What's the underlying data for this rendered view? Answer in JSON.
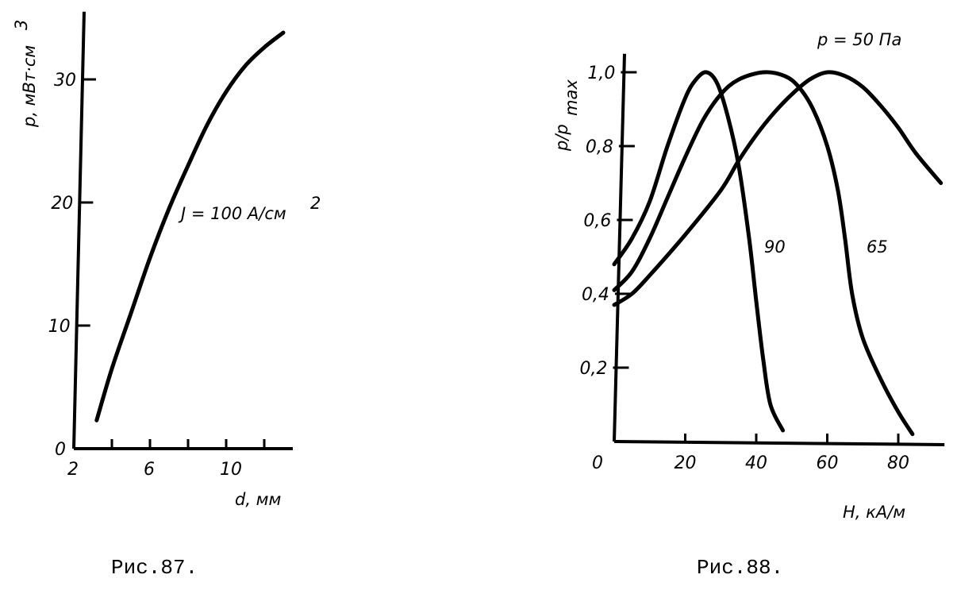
{
  "chart_data": [
    {
      "type": "line",
      "title": "",
      "caption": "Рис.87.",
      "xlabel": "d, мм",
      "ylabel": "p, мВт·см",
      "ylabel_sup": "3",
      "xlim": [
        2,
        13.5
      ],
      "ylim": [
        0,
        35.5
      ],
      "xticks": [
        2,
        4,
        6,
        8,
        10,
        12
      ],
      "xtick_labels": [
        "2",
        "",
        "6",
        "",
        "10",
        ""
      ],
      "yticks": [
        0,
        10,
        20,
        30
      ],
      "ytick_labels": [
        "0",
        "10",
        "20",
        "30"
      ],
      "grid": false,
      "annotation": "J = 100 A/см",
      "annotation_sup": "2",
      "series": [
        {
          "name": "J = 100 A/см2",
          "x": [
            3.2,
            4,
            5,
            6,
            7,
            8,
            9,
            10,
            11,
            12,
            13.0
          ],
          "y": [
            2.3,
            6.5,
            11,
            15.5,
            19.5,
            23,
            26.3,
            29,
            31.1,
            32.6,
            33.8
          ]
        }
      ]
    },
    {
      "type": "line",
      "title": "",
      "caption": "Рис.88.",
      "xlabel": "H, кА/м",
      "ylabel": "p/p",
      "ylabel_sub": "max",
      "xlim": [
        0,
        93
      ],
      "ylim": [
        0,
        1.05
      ],
      "xticks": [
        0,
        20,
        40,
        60,
        80
      ],
      "xtick_labels": [
        "0",
        "20",
        "40",
        "60",
        "80"
      ],
      "yticks": [
        0.2,
        0.4,
        0.6,
        0.8,
        1.0
      ],
      "ytick_labels": [
        "0,2",
        "0,4",
        "0,6",
        "0,8",
        "1,0"
      ],
      "grid": false,
      "series": [
        {
          "name": "90",
          "x": [
            0,
            5,
            10,
            15,
            20,
            23,
            26,
            29,
            32,
            35,
            38,
            40,
            42,
            44,
            47.5
          ],
          "y": [
            0.48,
            0.55,
            0.65,
            0.8,
            0.93,
            0.98,
            1.0,
            0.97,
            0.88,
            0.75,
            0.55,
            0.38,
            0.22,
            0.1,
            0.03
          ]
        },
        {
          "name": "65",
          "x": [
            0,
            5,
            10,
            15,
            20,
            25,
            30,
            35,
            42,
            48,
            52,
            56,
            60,
            63,
            65,
            67,
            70,
            75,
            80,
            84
          ],
          "y": [
            0.41,
            0.46,
            0.55,
            0.66,
            0.77,
            0.87,
            0.94,
            0.98,
            1.0,
            0.99,
            0.96,
            0.9,
            0.8,
            0.68,
            0.55,
            0.4,
            0.28,
            0.17,
            0.08,
            0.02
          ]
        },
        {
          "name": "p = 50 Па",
          "x": [
            0,
            5,
            10,
            20,
            30,
            35,
            40,
            45,
            50,
            55,
            60,
            65,
            70,
            75,
            80,
            85,
            92
          ],
          "y": [
            0.37,
            0.4,
            0.45,
            0.56,
            0.68,
            0.76,
            0.83,
            0.89,
            0.94,
            0.98,
            1.0,
            0.99,
            0.96,
            0.91,
            0.85,
            0.78,
            0.7
          ]
        }
      ]
    }
  ]
}
